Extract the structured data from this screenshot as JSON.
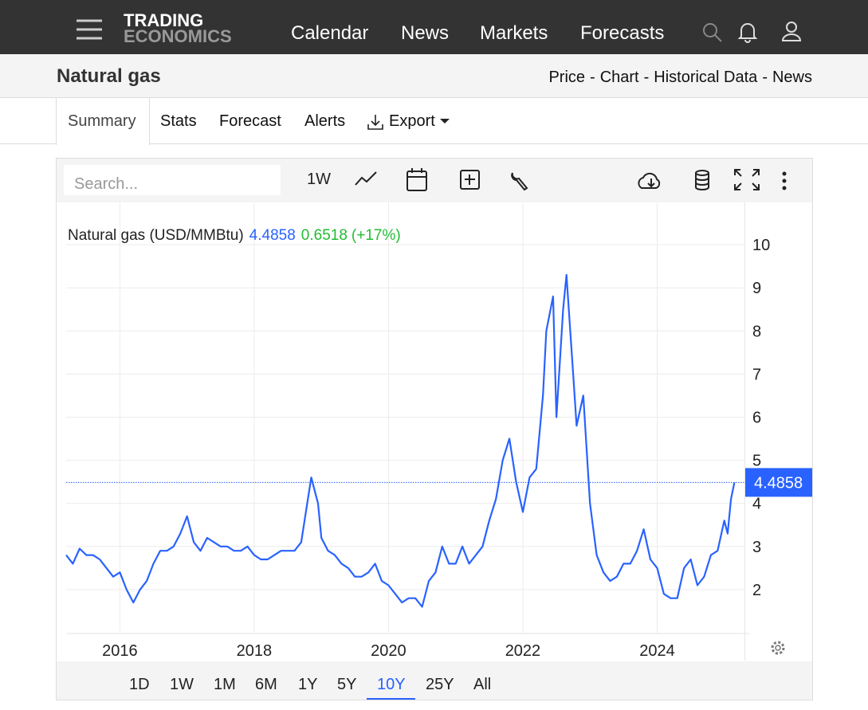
{
  "header": {
    "logo_top": "TRADING",
    "logo_bottom": "ECONOMICS",
    "nav": [
      "Calendar",
      "News",
      "Markets",
      "Forecasts"
    ]
  },
  "subheader": {
    "title": "Natural gas",
    "links": [
      "Price",
      "Chart",
      "Historical Data",
      "News"
    ],
    "separator": "-"
  },
  "tabs": [
    "Summary",
    "Stats",
    "Forecast",
    "Alerts",
    "Export"
  ],
  "toolbar": {
    "search_placeholder": "Search...",
    "interval": "1W"
  },
  "ranges": {
    "items": [
      "1D",
      "1W",
      "1M",
      "6M",
      "1Y",
      "5Y",
      "10Y",
      "25Y",
      "All"
    ],
    "active": "10Y"
  },
  "chart_data": {
    "type": "line",
    "title": "Natural gas (USD/MMBtu)",
    "price": 4.4858,
    "change": 0.6518,
    "change_pct": "(+17%)",
    "xlim": [
      2015.2,
      2025.3
    ],
    "xticks": [
      2016,
      2018,
      2020,
      2022,
      2024
    ],
    "ylim": [
      1,
      11
    ],
    "yticks": [
      2,
      3,
      4,
      5,
      6,
      7,
      8,
      9,
      10
    ],
    "grid": true,
    "series": [
      {
        "name": "Natural gas",
        "color": "#2962ff",
        "x": [
          2015.2,
          2015.3,
          2015.4,
          2015.5,
          2015.6,
          2015.7,
          2015.8,
          2015.9,
          2016.0,
          2016.1,
          2016.2,
          2016.3,
          2016.4,
          2016.5,
          2016.6,
          2016.7,
          2016.8,
          2016.9,
          2017.0,
          2017.1,
          2017.2,
          2017.3,
          2017.4,
          2017.5,
          2017.6,
          2017.7,
          2017.8,
          2017.9,
          2018.0,
          2018.1,
          2018.2,
          2018.3,
          2018.4,
          2018.5,
          2018.6,
          2018.7,
          2018.85,
          2018.95,
          2019.0,
          2019.1,
          2019.2,
          2019.3,
          2019.4,
          2019.5,
          2019.6,
          2019.7,
          2019.8,
          2019.9,
          2020.0,
          2020.1,
          2020.2,
          2020.3,
          2020.4,
          2020.5,
          2020.6,
          2020.7,
          2020.8,
          2020.9,
          2021.0,
          2021.1,
          2021.2,
          2021.3,
          2021.4,
          2021.5,
          2021.6,
          2021.7,
          2021.8,
          2021.9,
          2022.0,
          2022.1,
          2022.2,
          2022.3,
          2022.35,
          2022.45,
          2022.5,
          2022.6,
          2022.65,
          2022.75,
          2022.8,
          2022.9,
          2023.0,
          2023.1,
          2023.2,
          2023.3,
          2023.4,
          2023.5,
          2023.6,
          2023.7,
          2023.8,
          2023.9,
          2024.0,
          2024.1,
          2024.2,
          2024.3,
          2024.4,
          2024.5,
          2024.6,
          2024.7,
          2024.8,
          2024.9,
          2025.0,
          2025.05,
          2025.1,
          2025.15
        ],
        "values": [
          2.8,
          2.6,
          2.95,
          2.8,
          2.8,
          2.7,
          2.5,
          2.3,
          2.4,
          2.0,
          1.7,
          2.0,
          2.2,
          2.6,
          2.9,
          2.9,
          3.0,
          3.3,
          3.7,
          3.1,
          2.9,
          3.2,
          3.1,
          3.0,
          3.0,
          2.9,
          2.9,
          3.0,
          2.8,
          2.7,
          2.7,
          2.8,
          2.9,
          2.9,
          2.9,
          3.1,
          4.6,
          4.0,
          3.2,
          2.9,
          2.8,
          2.6,
          2.5,
          2.3,
          2.3,
          2.4,
          2.6,
          2.2,
          2.1,
          1.9,
          1.7,
          1.8,
          1.8,
          1.6,
          2.2,
          2.4,
          3.0,
          2.6,
          2.6,
          3.0,
          2.6,
          2.8,
          3.0,
          3.6,
          4.1,
          5.0,
          5.5,
          4.5,
          3.8,
          4.6,
          4.8,
          6.5,
          8.0,
          8.8,
          6.0,
          8.5,
          9.3,
          7.0,
          5.8,
          6.5,
          4.0,
          2.8,
          2.4,
          2.2,
          2.3,
          2.6,
          2.6,
          2.9,
          3.4,
          2.7,
          2.5,
          1.9,
          1.8,
          1.8,
          2.5,
          2.7,
          2.1,
          2.3,
          2.8,
          2.9,
          3.6,
          3.3,
          4.1,
          4.4858
        ]
      }
    ]
  }
}
